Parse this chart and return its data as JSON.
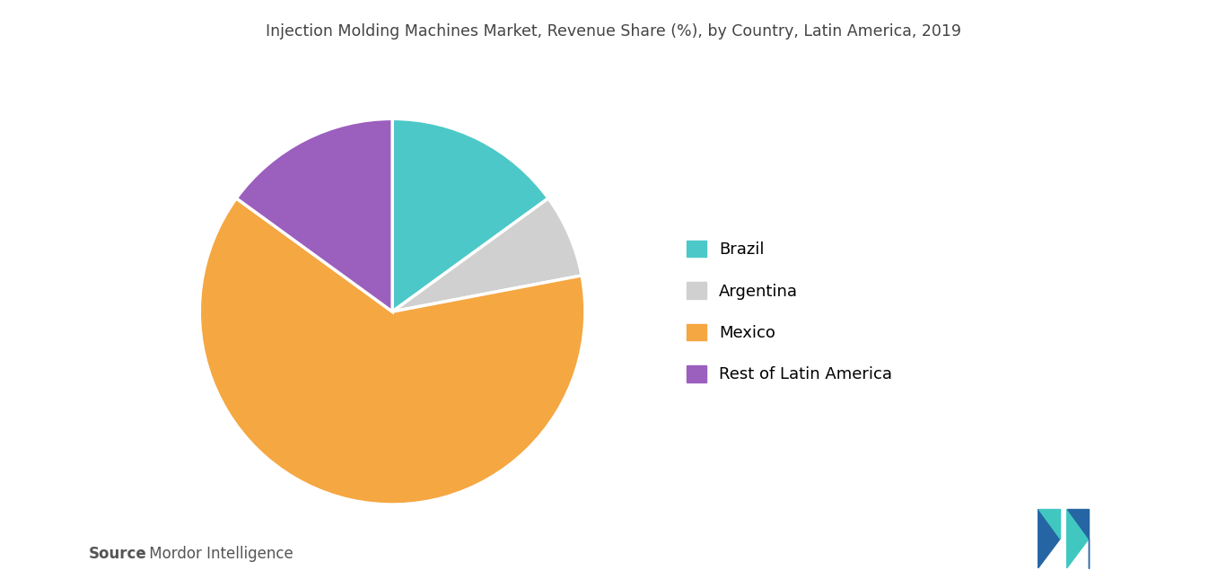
{
  "title": "Injection Molding Machines Market, Revenue Share (%), by Country, Latin America, 2019",
  "labels": [
    "Brazil",
    "Argentina",
    "Mexico",
    "Rest of Latin America"
  ],
  "values": [
    15,
    7,
    63,
    15
  ],
  "colors": [
    "#4dc8c8",
    "#d0d0d0",
    "#f5a742",
    "#9b5fbe"
  ],
  "legend_labels": [
    "Brazil",
    "Argentina",
    "Mexico",
    "Rest of Latin America"
  ],
  "source_bold": "Source",
  "source_rest": " : Mordor Intelligence",
  "background_color": "#ffffff",
  "title_fontsize": 12.5,
  "legend_fontsize": 13,
  "source_fontsize": 12,
  "startangle": 90
}
